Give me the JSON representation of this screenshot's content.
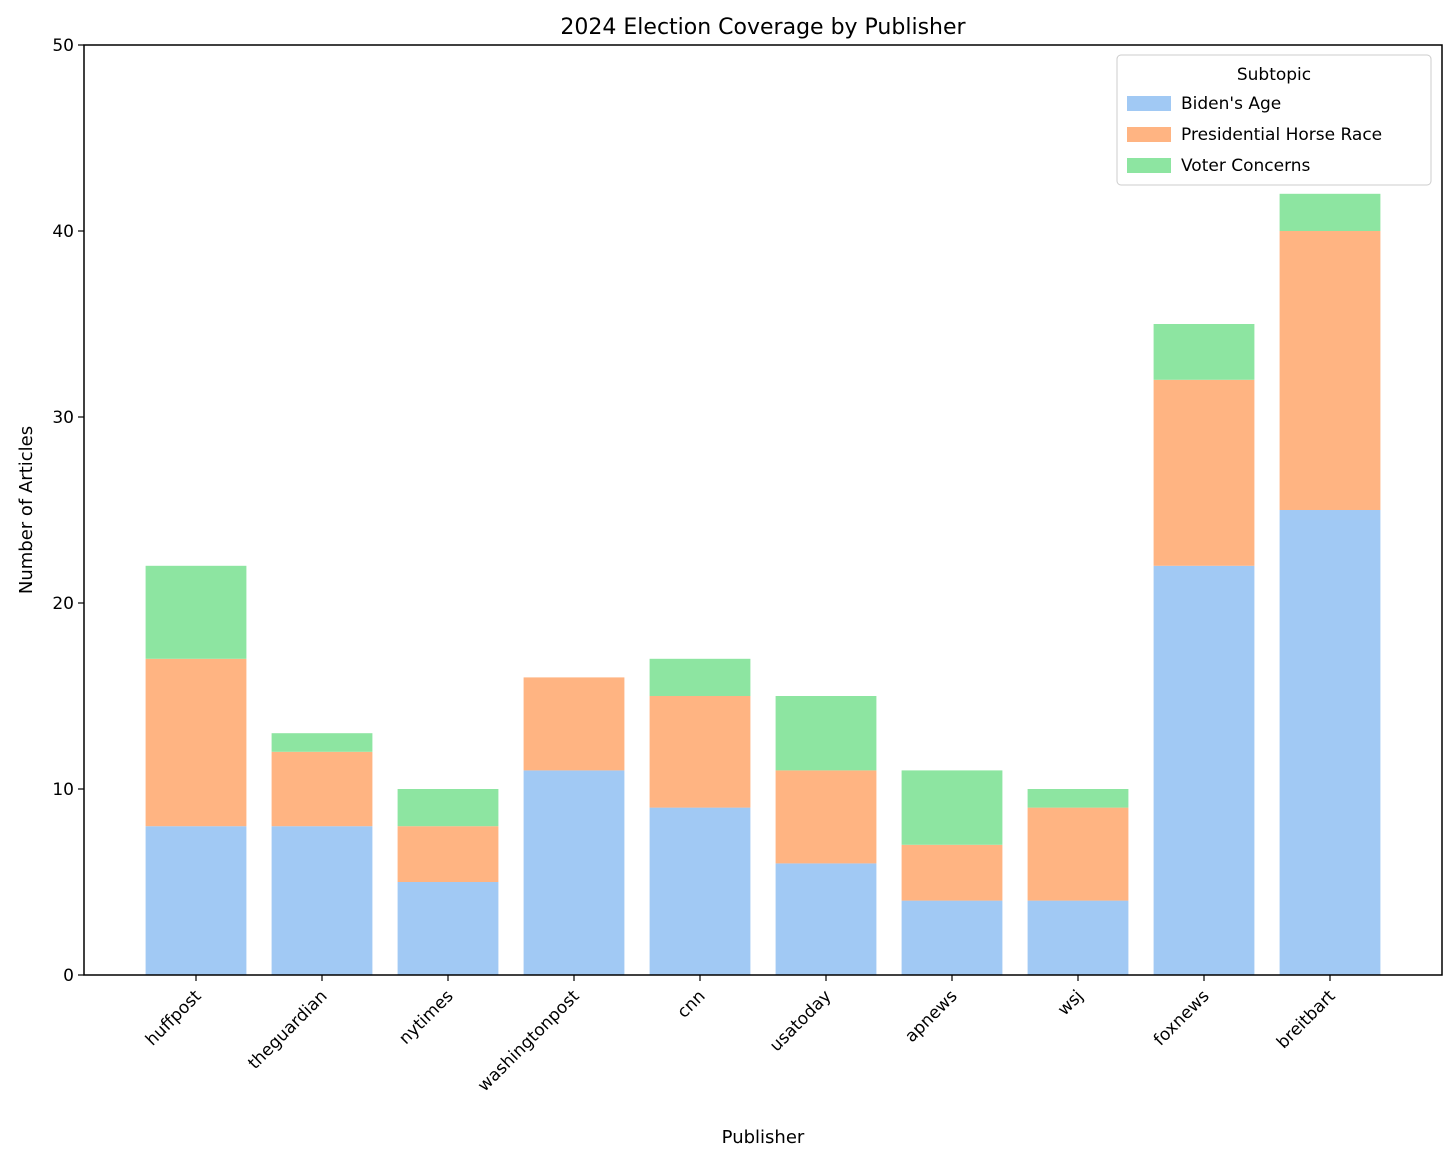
{
  "chart_data": {
    "type": "bar",
    "stacked": true,
    "title": "2024 Election Coverage by Publisher",
    "xlabel": "Publisher",
    "ylabel": "Number of Articles",
    "ylim": [
      0,
      50
    ],
    "yticks": [
      0,
      10,
      20,
      30,
      40,
      50
    ],
    "grid": false,
    "legend": {
      "title": "Subtopic",
      "placement": "top-right"
    },
    "categories": [
      "huffpost",
      "theguardian",
      "nytimes",
      "washingtonpost",
      "cnn",
      "usatoday",
      "apnews",
      "wsj",
      "foxnews",
      "breitbart"
    ],
    "series": [
      {
        "name": "Biden's Age",
        "color": "#a1c9f4",
        "values": [
          8,
          8,
          5,
          11,
          9,
          6,
          4,
          4,
          22,
          25
        ]
      },
      {
        "name": "Presidential Horse Race",
        "color": "#ffb482",
        "values": [
          9,
          4,
          3,
          5,
          6,
          5,
          3,
          5,
          10,
          15
        ]
      },
      {
        "name": "Voter Concerns",
        "color": "#8de5a1",
        "values": [
          5,
          1,
          2,
          0,
          2,
          4,
          4,
          1,
          3,
          2
        ]
      }
    ]
  }
}
